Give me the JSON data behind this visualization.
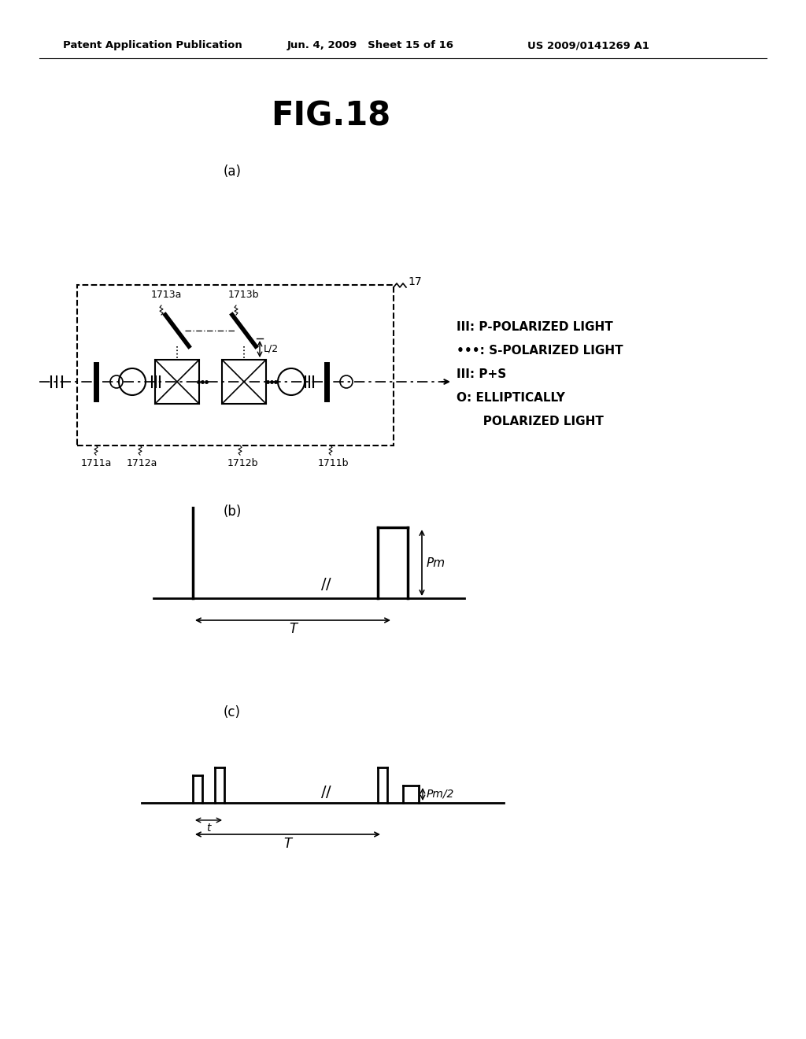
{
  "title": "FIG.18",
  "header_left": "Patent Application Publication",
  "header_mid": "Jun. 4, 2009   Sheet 15 of 16",
  "header_right": "US 2009/0141269 A1",
  "bg_color": "#ffffff",
  "label_a": "(a)",
  "label_b": "(b)",
  "label_c": "(c)",
  "legend_line1": "III: P-POLARIZED LIGHT",
  "legend_line2": "•••: S-POLARIZED LIGHT",
  "legend_line3": "III: P+S",
  "legend_line4a": "O: ELLIPTICALLY",
  "legend_line4b": "   POLARIZED LIGHT",
  "lbl_17": "17",
  "lbl_1713a": "1713a",
  "lbl_1713b": "1713b",
  "lbl_1711a": "1711a",
  "lbl_1712a": "1712a",
  "lbl_1712b": "1712b",
  "lbl_1711b": "1711b",
  "lbl_L2": "L/2",
  "lbl_Pm": "Pm",
  "lbl_Pm2": "Pm/2",
  "lbl_T": "T",
  "lbl_t": "t"
}
